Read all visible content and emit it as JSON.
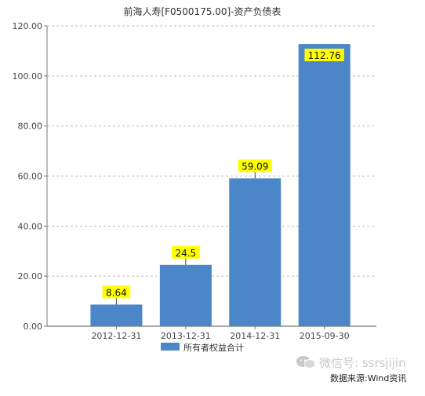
{
  "watermark": {
    "text": "微信号: ssrsjijin",
    "icon": "wechat-icon"
  },
  "source": "数据来源:Wind资讯",
  "chart_data": {
    "type": "bar",
    "title": "前海人寿[F0500175.00]-资产负债表",
    "categories": [
      "2012-12-31",
      "2013-12-31",
      "2014-12-31",
      "2015-09-30"
    ],
    "series": [
      {
        "name": "所有者权益合计",
        "values": [
          8.64,
          24.5,
          59.09,
          112.76
        ],
        "color": "#4a86c8"
      }
    ],
    "data_labels": [
      "8.64",
      "24.5",
      "59.09",
      "112.76"
    ],
    "yticks": [
      "0.00",
      "20.00",
      "40.00",
      "60.00",
      "80.00",
      "100.00",
      "120.00"
    ],
    "ylim": [
      0,
      120
    ],
    "xlabel": "",
    "ylabel": "",
    "grid": true,
    "legend": "bottom-center",
    "label_bg": "#ffff00"
  }
}
